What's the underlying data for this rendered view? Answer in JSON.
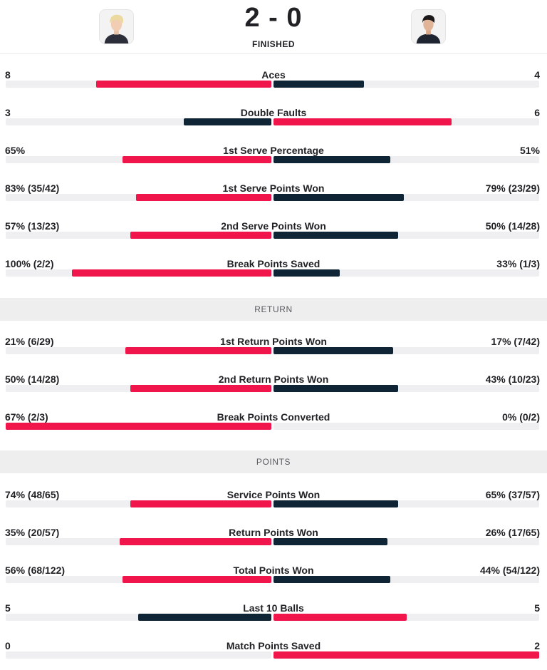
{
  "header": {
    "score": "2 - 0",
    "status": "FINISHED",
    "left_player_avatar": "player-photo-icon",
    "right_player_avatar": "player-photo-icon"
  },
  "colors": {
    "leader": "#f0154a",
    "trailer": "#0f2535",
    "track": "#efeff1"
  },
  "sections": {
    "return": "RETURN",
    "points": "POINTS"
  },
  "serve_stats": [
    {
      "label": "Aces",
      "left": "8",
      "right": "4",
      "left_fraction": 0.66,
      "right_fraction": 0.34,
      "leader": "left"
    },
    {
      "label": "Double Faults",
      "left": "3",
      "right": "6",
      "left_fraction": 0.33,
      "right_fraction": 0.67,
      "leader": "right"
    },
    {
      "label": "1st Serve Percentage",
      "left": "65%",
      "right": "51%",
      "left_fraction": 0.56,
      "right_fraction": 0.44,
      "leader": "left"
    },
    {
      "label": "1st Serve Points Won",
      "left": "83% (35/42)",
      "right": "79% (23/29)",
      "left_fraction": 0.51,
      "right_fraction": 0.49,
      "leader": "left"
    },
    {
      "label": "2nd Serve Points Won",
      "left": "57% (13/23)",
      "right": "50% (14/28)",
      "left_fraction": 0.53,
      "right_fraction": 0.47,
      "leader": "left"
    },
    {
      "label": "Break Points Saved",
      "left": "100% (2/2)",
      "right": "33% (1/3)",
      "left_fraction": 0.75,
      "right_fraction": 0.25,
      "leader": "left"
    }
  ],
  "return_stats": [
    {
      "label": "1st Return Points Won",
      "left": "21% (6/29)",
      "right": "17% (7/42)",
      "left_fraction": 0.55,
      "right_fraction": 0.45,
      "leader": "left"
    },
    {
      "label": "2nd Return Points Won",
      "left": "50% (14/28)",
      "right": "43% (10/23)",
      "left_fraction": 0.53,
      "right_fraction": 0.47,
      "leader": "left"
    },
    {
      "label": "Break Points Converted",
      "left": "67% (2/3)",
      "right": "0% (0/2)",
      "left_fraction": 1.0,
      "right_fraction": 0.0,
      "leader": "left"
    }
  ],
  "points_stats": [
    {
      "label": "Service Points Won",
      "left": "74% (48/65)",
      "right": "65% (37/57)",
      "left_fraction": 0.53,
      "right_fraction": 0.47,
      "leader": "left"
    },
    {
      "label": "Return Points Won",
      "left": "35% (20/57)",
      "right": "26% (17/65)",
      "left_fraction": 0.57,
      "right_fraction": 0.43,
      "leader": "left"
    },
    {
      "label": "Total Points Won",
      "left": "56% (68/122)",
      "right": "44% (54/122)",
      "left_fraction": 0.56,
      "right_fraction": 0.44,
      "leader": "left"
    },
    {
      "label": "Last 10 Balls",
      "left": "5",
      "right": "5",
      "left_fraction": 0.5,
      "right_fraction": 0.5,
      "leader": "right"
    },
    {
      "label": "Match Points Saved",
      "left": "0",
      "right": "2",
      "left_fraction": 0.0,
      "right_fraction": 1.0,
      "leader": "right"
    }
  ]
}
